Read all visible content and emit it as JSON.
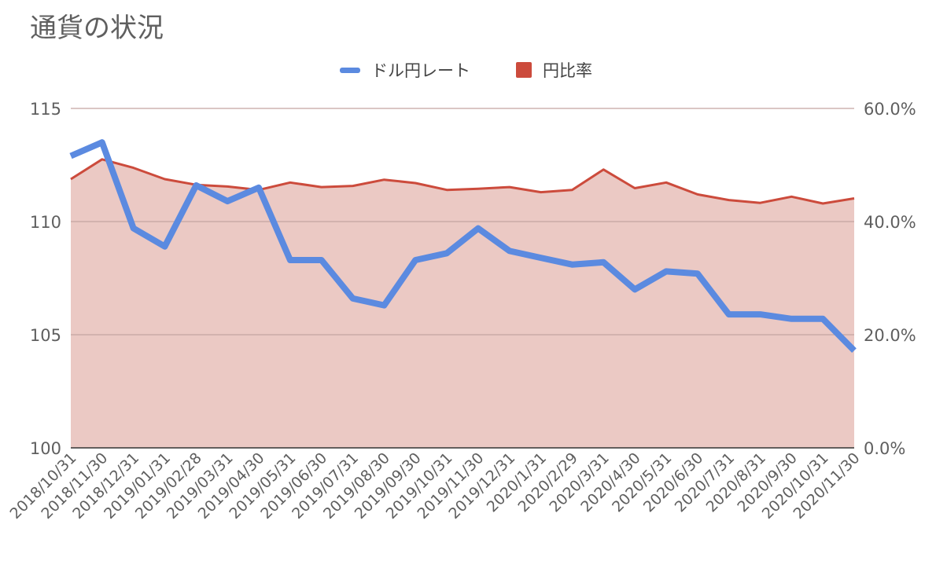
{
  "chart_data": {
    "type": "line",
    "title": "通貨の状況",
    "categories": [
      "2018/10/31",
      "2018/11/30",
      "2018/12/31",
      "2019/01/31",
      "2019/02/28",
      "2019/03/31",
      "2019/04/30",
      "2019/05/31",
      "2019/06/30",
      "2019/07/31",
      "2019/08/30",
      "2019/09/30",
      "2019/10/31",
      "2019/11/30",
      "2019/12/31",
      "2020/1/31",
      "2020/2/29",
      "2020/3/31",
      "2020/4/30",
      "2020/5/31",
      "2020/6/30",
      "2020/7/31",
      "2020/8/31",
      "2020/9/30",
      "2020/10/31",
      "2020/11/30"
    ],
    "series": [
      {
        "name": "ドル円レート",
        "axis": "left",
        "style": "line",
        "color": "#5b8ae0",
        "values": [
          112.9,
          113.5,
          109.7,
          108.9,
          111.6,
          110.9,
          111.5,
          108.3,
          108.3,
          106.6,
          106.3,
          108.3,
          108.6,
          109.7,
          108.7,
          108.4,
          108.1,
          108.2,
          107.0,
          107.8,
          107.7,
          105.9,
          105.9,
          105.7,
          105.7,
          104.3
        ]
      },
      {
        "name": "円比率",
        "axis": "right",
        "style": "area",
        "color": "#cc4b3c",
        "fill": "#ebc9c4",
        "values": [
          47.5,
          51.0,
          49.5,
          47.5,
          46.5,
          46.2,
          45.6,
          46.9,
          46.1,
          46.3,
          47.4,
          46.8,
          45.6,
          45.8,
          46.1,
          45.2,
          45.6,
          49.2,
          45.9,
          46.9,
          44.8,
          43.8,
          43.3,
          44.4,
          43.2,
          44.1
        ]
      }
    ],
    "y_left": {
      "ylim": [
        100,
        115
      ],
      "ticks": [
        "100",
        "105",
        "110",
        "115"
      ]
    },
    "y_right": {
      "ylim": [
        0,
        60
      ],
      "ticks": [
        "0.0%",
        "20.0%",
        "40.0%",
        "60.0%"
      ]
    },
    "grid": true,
    "legend_position": "top-center"
  }
}
